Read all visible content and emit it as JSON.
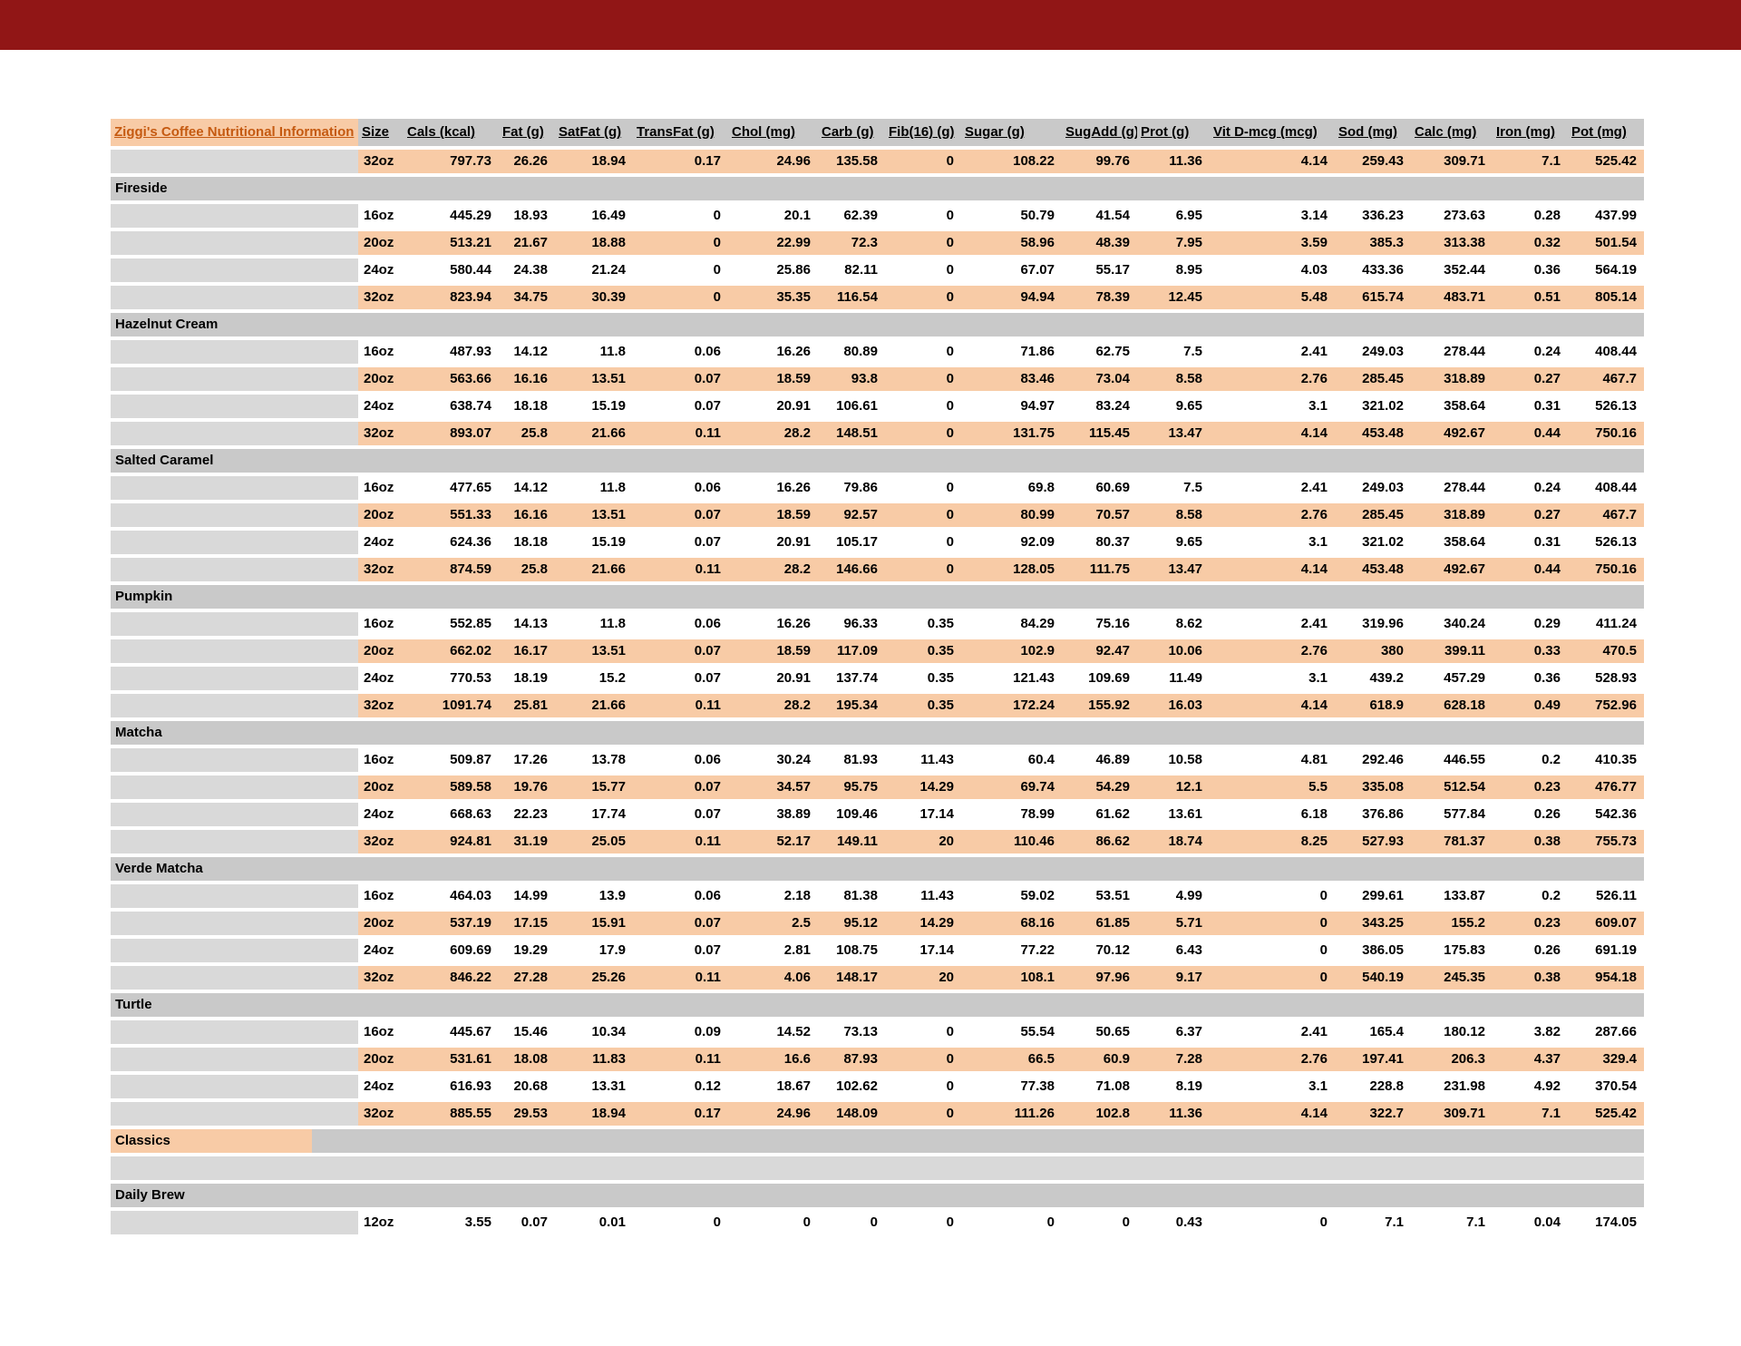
{
  "app": {
    "top_bar_color": "#911616"
  },
  "sheet": {
    "title": "Ziggi's Coffee Nutritional Information",
    "title_color": "#C55A11",
    "colors": {
      "row_orange": "#F8CBA6",
      "row_white": "#FFFFFF",
      "label_column_gray": "#D9D9D9",
      "section_bar_gray": "#C9C9C9",
      "spacer_gray": "#D9D9D9",
      "title_text": "#C55A11",
      "top_bar_red": "#911616"
    },
    "columns": [
      "Size",
      "Cals (kcal)",
      "Fat (g)",
      "SatFat (g)",
      "TransFat (g)",
      "Chol (mg)",
      "Carb (g)",
      "Fib(16) (g)",
      "Sugar (g)",
      "SugAdd (g)",
      "Prot (g)",
      "Vit D-mcg (mcg)",
      "Sod (mg)",
      "Calc (mg)",
      "Iron (mg)",
      "Pot (mg)"
    ],
    "orphan_row": {
      "cells": [
        "32oz",
        "797.73",
        "26.26",
        "18.94",
        "0.17",
        "24.96",
        "135.58",
        "0",
        "108.22",
        "99.76",
        "11.36",
        "4.14",
        "259.43",
        "309.71",
        "7.1",
        "525.42"
      ]
    },
    "sections": [
      {
        "label": "Fireside",
        "type": "section",
        "rows": [
          {
            "cells": [
              "16oz",
              "445.29",
              "18.93",
              "16.49",
              "0",
              "20.1",
              "62.39",
              "0",
              "50.79",
              "41.54",
              "6.95",
              "3.14",
              "336.23",
              "273.63",
              "0.28",
              "437.99"
            ]
          },
          {
            "cells": [
              "20oz",
              "513.21",
              "21.67",
              "18.88",
              "0",
              "22.99",
              "72.3",
              "0",
              "58.96",
              "48.39",
              "7.95",
              "3.59",
              "385.3",
              "313.38",
              "0.32",
              "501.54"
            ]
          },
          {
            "cells": [
              "24oz",
              "580.44",
              "24.38",
              "21.24",
              "0",
              "25.86",
              "82.11",
              "0",
              "67.07",
              "55.17",
              "8.95",
              "4.03",
              "433.36",
              "352.44",
              "0.36",
              "564.19"
            ]
          },
          {
            "cells": [
              "32oz",
              "823.94",
              "34.75",
              "30.39",
              "0",
              "35.35",
              "116.54",
              "0",
              "94.94",
              "78.39",
              "12.45",
              "5.48",
              "615.74",
              "483.71",
              "0.51",
              "805.14"
            ]
          }
        ]
      },
      {
        "label": "Hazelnut Cream",
        "type": "section",
        "rows": [
          {
            "cells": [
              "16oz",
              "487.93",
              "14.12",
              "11.8",
              "0.06",
              "16.26",
              "80.89",
              "0",
              "71.86",
              "62.75",
              "7.5",
              "2.41",
              "249.03",
              "278.44",
              "0.24",
              "408.44"
            ]
          },
          {
            "cells": [
              "20oz",
              "563.66",
              "16.16",
              "13.51",
              "0.07",
              "18.59",
              "93.8",
              "0",
              "83.46",
              "73.04",
              "8.58",
              "2.76",
              "285.45",
              "318.89",
              "0.27",
              "467.7"
            ]
          },
          {
            "cells": [
              "24oz",
              "638.74",
              "18.18",
              "15.19",
              "0.07",
              "20.91",
              "106.61",
              "0",
              "94.97",
              "83.24",
              "9.65",
              "3.1",
              "321.02",
              "358.64",
              "0.31",
              "526.13"
            ]
          },
          {
            "cells": [
              "32oz",
              "893.07",
              "25.8",
              "21.66",
              "0.11",
              "28.2",
              "148.51",
              "0",
              "131.75",
              "115.45",
              "13.47",
              "4.14",
              "453.48",
              "492.67",
              "0.44",
              "750.16"
            ]
          }
        ]
      },
      {
        "label": "Salted Caramel",
        "type": "section",
        "rows": [
          {
            "cells": [
              "16oz",
              "477.65",
              "14.12",
              "11.8",
              "0.06",
              "16.26",
              "79.86",
              "0",
              "69.8",
              "60.69",
              "7.5",
              "2.41",
              "249.03",
              "278.44",
              "0.24",
              "408.44"
            ]
          },
          {
            "cells": [
              "20oz",
              "551.33",
              "16.16",
              "13.51",
              "0.07",
              "18.59",
              "92.57",
              "0",
              "80.99",
              "70.57",
              "8.58",
              "2.76",
              "285.45",
              "318.89",
              "0.27",
              "467.7"
            ]
          },
          {
            "cells": [
              "24oz",
              "624.36",
              "18.18",
              "15.19",
              "0.07",
              "20.91",
              "105.17",
              "0",
              "92.09",
              "80.37",
              "9.65",
              "3.1",
              "321.02",
              "358.64",
              "0.31",
              "526.13"
            ]
          },
          {
            "cells": [
              "32oz",
              "874.59",
              "25.8",
              "21.66",
              "0.11",
              "28.2",
              "146.66",
              "0",
              "128.05",
              "111.75",
              "13.47",
              "4.14",
              "453.48",
              "492.67",
              "0.44",
              "750.16"
            ]
          }
        ]
      },
      {
        "label": "Pumpkin",
        "type": "section",
        "rows": [
          {
            "cells": [
              "16oz",
              "552.85",
              "14.13",
              "11.8",
              "0.06",
              "16.26",
              "96.33",
              "0.35",
              "84.29",
              "75.16",
              "8.62",
              "2.41",
              "319.96",
              "340.24",
              "0.29",
              "411.24"
            ]
          },
          {
            "cells": [
              "20oz",
              "662.02",
              "16.17",
              "13.51",
              "0.07",
              "18.59",
              "117.09",
              "0.35",
              "102.9",
              "92.47",
              "10.06",
              "2.76",
              "380",
              "399.11",
              "0.33",
              "470.5"
            ]
          },
          {
            "cells": [
              "24oz",
              "770.53",
              "18.19",
              "15.2",
              "0.07",
              "20.91",
              "137.74",
              "0.35",
              "121.43",
              "109.69",
              "11.49",
              "3.1",
              "439.2",
              "457.29",
              "0.36",
              "528.93"
            ]
          },
          {
            "cells": [
              "32oz",
              "1091.74",
              "25.81",
              "21.66",
              "0.11",
              "28.2",
              "195.34",
              "0.35",
              "172.24",
              "155.92",
              "16.03",
              "4.14",
              "618.9",
              "628.18",
              "0.49",
              "752.96"
            ]
          }
        ]
      },
      {
        "label": "Matcha",
        "type": "section",
        "rows": [
          {
            "cells": [
              "16oz",
              "509.87",
              "17.26",
              "13.78",
              "0.06",
              "30.24",
              "81.93",
              "11.43",
              "60.4",
              "46.89",
              "10.58",
              "4.81",
              "292.46",
              "446.55",
              "0.2",
              "410.35"
            ]
          },
          {
            "cells": [
              "20oz",
              "589.58",
              "19.76",
              "15.77",
              "0.07",
              "34.57",
              "95.75",
              "14.29",
              "69.74",
              "54.29",
              "12.1",
              "5.5",
              "335.08",
              "512.54",
              "0.23",
              "476.77"
            ]
          },
          {
            "cells": [
              "24oz",
              "668.63",
              "22.23",
              "17.74",
              "0.07",
              "38.89",
              "109.46",
              "17.14",
              "78.99",
              "61.62",
              "13.61",
              "6.18",
              "376.86",
              "577.84",
              "0.26",
              "542.36"
            ]
          },
          {
            "cells": [
              "32oz",
              "924.81",
              "31.19",
              "25.05",
              "0.11",
              "52.17",
              "149.11",
              "20",
              "110.46",
              "86.62",
              "18.74",
              "8.25",
              "527.93",
              "781.37",
              "0.38",
              "755.73"
            ]
          }
        ]
      },
      {
        "label": "Verde Matcha",
        "type": "section",
        "rows": [
          {
            "cells": [
              "16oz",
              "464.03",
              "14.99",
              "13.9",
              "0.06",
              "2.18",
              "81.38",
              "11.43",
              "59.02",
              "53.51",
              "4.99",
              "0",
              "299.61",
              "133.87",
              "0.2",
              "526.11"
            ]
          },
          {
            "cells": [
              "20oz",
              "537.19",
              "17.15",
              "15.91",
              "0.07",
              "2.5",
              "95.12",
              "14.29",
              "68.16",
              "61.85",
              "5.71",
              "0",
              "343.25",
              "155.2",
              "0.23",
              "609.07"
            ]
          },
          {
            "cells": [
              "24oz",
              "609.69",
              "19.29",
              "17.9",
              "0.07",
              "2.81",
              "108.75",
              "17.14",
              "77.22",
              "70.12",
              "6.43",
              "0",
              "386.05",
              "175.83",
              "0.26",
              "691.19"
            ]
          },
          {
            "cells": [
              "32oz",
              "846.22",
              "27.28",
              "25.26",
              "0.11",
              "4.06",
              "148.17",
              "20",
              "108.1",
              "97.96",
              "9.17",
              "0",
              "540.19",
              "245.35",
              "0.38",
              "954.18"
            ]
          }
        ]
      },
      {
        "label": "Turtle",
        "type": "section",
        "rows": [
          {
            "cells": [
              "16oz",
              "445.67",
              "15.46",
              "10.34",
              "0.09",
              "14.52",
              "73.13",
              "0",
              "55.54",
              "50.65",
              "6.37",
              "2.41",
              "165.4",
              "180.12",
              "3.82",
              "287.66"
            ]
          },
          {
            "cells": [
              "20oz",
              "531.61",
              "18.08",
              "11.83",
              "0.11",
              "16.6",
              "87.93",
              "0",
              "66.5",
              "60.9",
              "7.28",
              "2.76",
              "197.41",
              "206.3",
              "4.37",
              "329.4"
            ]
          },
          {
            "cells": [
              "24oz",
              "616.93",
              "20.68",
              "13.31",
              "0.12",
              "18.67",
              "102.62",
              "0",
              "77.38",
              "71.08",
              "8.19",
              "3.1",
              "228.8",
              "231.98",
              "4.92",
              "370.54"
            ]
          },
          {
            "cells": [
              "32oz",
              "885.55",
              "29.53",
              "18.94",
              "0.17",
              "24.96",
              "148.09",
              "0",
              "111.26",
              "102.8",
              "11.36",
              "4.14",
              "322.7",
              "309.71",
              "7.1",
              "525.42"
            ]
          }
        ]
      },
      {
        "label": "Classics",
        "type": "section-highlight",
        "rows": []
      },
      {
        "label": "",
        "type": "spacer",
        "rows": []
      },
      {
        "label": "Daily Brew",
        "type": "section",
        "rows": [
          {
            "cells": [
              "12oz",
              "3.55",
              "0.07",
              "0.01",
              "0",
              "0",
              "0",
              "0",
              "0",
              "0",
              "0.43",
              "0",
              "7.1",
              "7.1",
              "0.04",
              "174.05"
            ]
          }
        ]
      }
    ]
  }
}
